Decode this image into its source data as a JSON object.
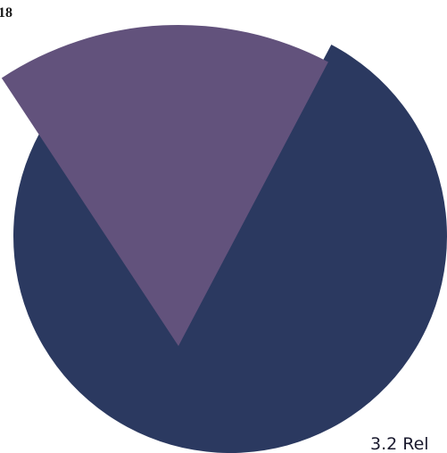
{
  "page_number": "18",
  "chart_data": {
    "type": "pie",
    "values": [
      17,
      83
    ],
    "colors": [
      "#62527c",
      "#2b3960"
    ],
    "exploded": [
      true,
      false
    ]
  },
  "section_heading": "3.2 Rel"
}
